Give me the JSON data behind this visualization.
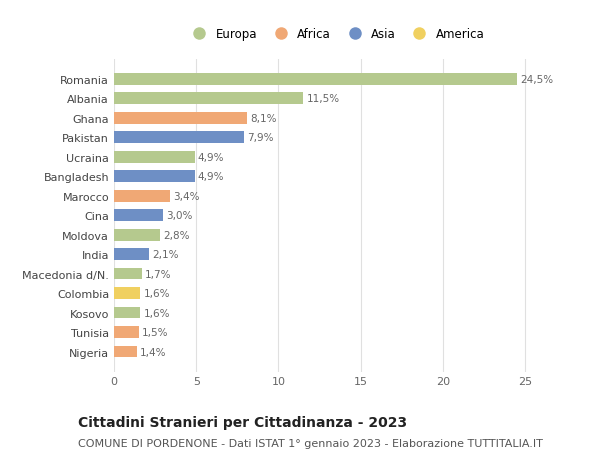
{
  "countries": [
    "Romania",
    "Albania",
    "Ghana",
    "Pakistan",
    "Ucraina",
    "Bangladesh",
    "Marocco",
    "Cina",
    "Moldova",
    "India",
    "Macedonia d/N.",
    "Colombia",
    "Kosovo",
    "Tunisia",
    "Nigeria"
  ],
  "values": [
    24.5,
    11.5,
    8.1,
    7.9,
    4.9,
    4.9,
    3.4,
    3.0,
    2.8,
    2.1,
    1.7,
    1.6,
    1.6,
    1.5,
    1.4
  ],
  "labels": [
    "24,5%",
    "11,5%",
    "8,1%",
    "7,9%",
    "4,9%",
    "4,9%",
    "3,4%",
    "3,0%",
    "2,8%",
    "2,1%",
    "1,7%",
    "1,6%",
    "1,6%",
    "1,5%",
    "1,4%"
  ],
  "continents": [
    "Europa",
    "Europa",
    "Africa",
    "Asia",
    "Europa",
    "Asia",
    "Africa",
    "Asia",
    "Europa",
    "Asia",
    "Europa",
    "America",
    "Europa",
    "Africa",
    "Africa"
  ],
  "continent_colors": {
    "Europa": "#b5c98e",
    "Africa": "#f0a875",
    "Asia": "#6e8fc5",
    "America": "#f0d060"
  },
  "legend_order": [
    "Europa",
    "Africa",
    "Asia",
    "America"
  ],
  "title": "Cittadini Stranieri per Cittadinanza - 2023",
  "subtitle": "COMUNE DI PORDENONE - Dati ISTAT 1° gennaio 2023 - Elaborazione TUTTITALIA.IT",
  "xlim": [
    0,
    27
  ],
  "xticks": [
    0,
    5,
    10,
    15,
    20,
    25
  ],
  "bar_alpha": 1.0,
  "background_color": "#ffffff",
  "grid_color": "#e0e0e0",
  "title_fontsize": 10,
  "subtitle_fontsize": 8,
  "label_fontsize": 7.5,
  "tick_fontsize": 8,
  "legend_fontsize": 8.5
}
